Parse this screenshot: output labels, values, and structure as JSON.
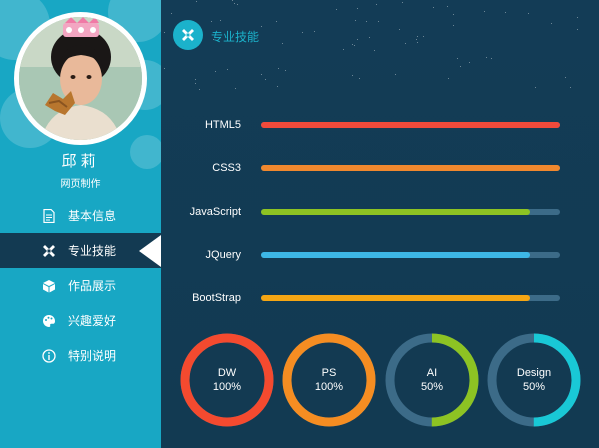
{
  "profile": {
    "name": "邱莉",
    "title": "网页制作"
  },
  "nav": {
    "items": [
      {
        "label": "基本信息",
        "icon": "document-icon"
      },
      {
        "label": "专业技能",
        "icon": "tools-icon"
      },
      {
        "label": "作品展示",
        "icon": "box-icon"
      },
      {
        "label": "兴趣爱好",
        "icon": "palette-icon"
      },
      {
        "label": "特别说明",
        "icon": "info-icon"
      }
    ],
    "active_index": 1
  },
  "header": {
    "title": "专业技能",
    "icon": "tools-icon"
  },
  "skills": [
    {
      "label": "HTML5",
      "level": 1.0,
      "color": "#f04a3b"
    },
    {
      "label": "CSS3",
      "level": 1.0,
      "color": "#f0882e"
    },
    {
      "label": "JavaScript",
      "level": 0.9,
      "color": "#8dc323"
    },
    {
      "label": "JQuery",
      "level": 0.9,
      "color": "#3db7e6"
    },
    {
      "label": "BootStrap",
      "level": 0.9,
      "color": "#f5a614"
    }
  ],
  "rings": [
    {
      "name": "DW",
      "value": "100%",
      "level": 1.0,
      "color": "#f44a2f"
    },
    {
      "name": "PS",
      "value": "100%",
      "level": 1.0,
      "color": "#f58d22"
    },
    {
      "name": "AI",
      "value": "50%",
      "level": 0.5,
      "color": "#8dc323"
    },
    {
      "name": "Design",
      "value": "50%",
      "level": 0.5,
      "color": "#19c8d6"
    }
  ],
  "colors": {
    "sidebar": "#18a7c4",
    "panel": "#133a52",
    "track": "#3c6b88",
    "accent": "#1bb2cb"
  }
}
